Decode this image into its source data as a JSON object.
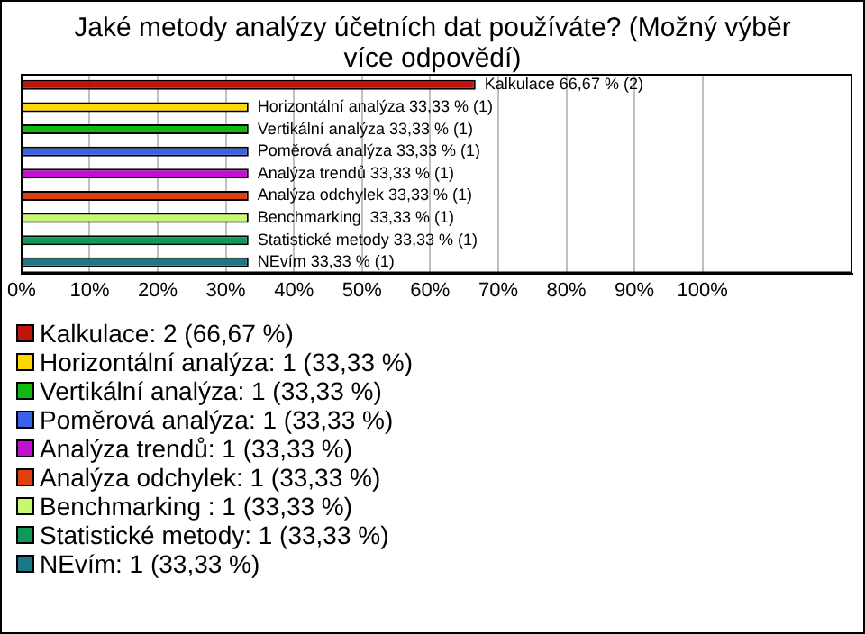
{
  "chart_data": {
    "type": "bar",
    "orientation": "horizontal",
    "title": "Jaké metody analýzy účetních dat používáte? (Možný výběr více odpovědí)",
    "categories": [
      null,
      null,
      null,
      null,
      null,
      null,
      null,
      null,
      null
    ],
    "series": [
      {
        "name": "Kalkulace: 2 (66,67 %)",
        "color": "#c0140c",
        "values": [
          66.67,
          null,
          null,
          null,
          null,
          null,
          null,
          null,
          null
        ],
        "value_labels": [
          "Kalkulace 66,67 % (2)",
          null,
          null,
          null,
          null,
          null,
          null,
          null,
          null
        ]
      },
      {
        "name": "Horizontální analýza: 1 (33,33 %)",
        "color": "#ffd800",
        "values": [
          null,
          33.33,
          null,
          null,
          null,
          null,
          null,
          null,
          null
        ],
        "value_labels": [
          null,
          "Horizontální analýza 33,33 % (1)",
          null,
          null,
          null,
          null,
          null,
          null,
          null
        ]
      },
      {
        "name": "Vertikální analýza: 1 (33,33 %)",
        "color": "#10b810",
        "values": [
          null,
          null,
          33.33,
          null,
          null,
          null,
          null,
          null,
          null
        ],
        "value_labels": [
          null,
          null,
          "Vertikální analýza 33,33 % (1)",
          null,
          null,
          null,
          null,
          null,
          null
        ]
      },
      {
        "name": "Poměrová analýza: 1 (33,33 %)",
        "color": "#3a62e8",
        "values": [
          null,
          null,
          null,
          33.33,
          null,
          null,
          null,
          null,
          null
        ],
        "value_labels": [
          null,
          null,
          null,
          "Poměrová analýza 33,33 % (1)",
          null,
          null,
          null,
          null,
          null
        ]
      },
      {
        "name": "Analýza trendů: 1 (33,33 %)",
        "color": "#c010d0",
        "values": [
          null,
          null,
          null,
          null,
          33.33,
          null,
          null,
          null,
          null
        ],
        "value_labels": [
          null,
          null,
          null,
          null,
          "Analýza trendů 33,33 % (1)",
          null,
          null,
          null,
          null
        ]
      },
      {
        "name": "Analýza odchylek: 1 (33,33 %)",
        "color": "#e0400c",
        "values": [
          null,
          null,
          null,
          null,
          null,
          33.33,
          null,
          null,
          null
        ],
        "value_labels": [
          null,
          null,
          null,
          null,
          null,
          "Analýza odchylek 33,33 % (1)",
          null,
          null,
          null
        ]
      },
      {
        "name": "Benchmarking : 1 (33,33 %)",
        "color": "#c8f870",
        "values": [
          null,
          null,
          null,
          null,
          null,
          null,
          33.33,
          null,
          null
        ],
        "value_labels": [
          null,
          null,
          null,
          null,
          null,
          null,
          "Benchmarking  33,33 % (1)",
          null,
          null
        ]
      },
      {
        "name": "Statistické metody: 1 (33,33 %)",
        "color": "#109858",
        "values": [
          null,
          null,
          null,
          null,
          null,
          null,
          null,
          33.33,
          null
        ],
        "value_labels": [
          null,
          null,
          null,
          null,
          null,
          null,
          null,
          "Statistické metody 33,33 % (1)",
          null
        ]
      },
      {
        "name": "NEvím: 1 (33,33 %)",
        "color": "#1c7888",
        "values": [
          null,
          null,
          null,
          null,
          null,
          null,
          null,
          null,
          33.33
        ],
        "value_labels": [
          null,
          null,
          null,
          null,
          null,
          null,
          null,
          null,
          "NEvím 33,33 % (1)"
        ]
      }
    ],
    "xlim": [
      0,
      122
    ],
    "xticks": [
      {
        "value": 0,
        "label": "0%"
      },
      {
        "value": 10,
        "label": "10%"
      },
      {
        "value": 20,
        "label": "20%"
      },
      {
        "value": 30,
        "label": "30%"
      },
      {
        "value": 40,
        "label": "40%"
      },
      {
        "value": 50,
        "label": "50%"
      },
      {
        "value": 60,
        "label": "60%"
      },
      {
        "value": 70,
        "label": "70%"
      },
      {
        "value": 80,
        "label": "80%"
      },
      {
        "value": 90,
        "label": "90%"
      },
      {
        "value": 100,
        "label": "100%"
      }
    ],
    "grid": "x",
    "legend": "bottom",
    "tick_labels": "x"
  }
}
